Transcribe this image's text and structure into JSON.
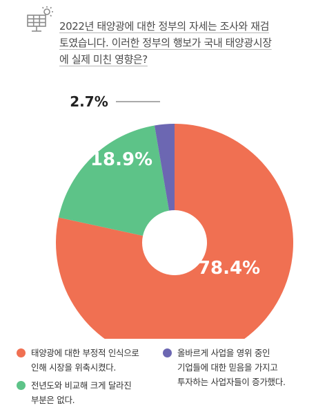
{
  "question": {
    "line1": "2022년 태양광에 대한 정부의 자세는 조사와 재검",
    "line2": "토였습니다. 이러한 정부의 행보가 국내 태양광시장",
    "line3": "에 실제 미친 영향은?"
  },
  "icons": {
    "header": "solar-panel-icon"
  },
  "colors": {
    "shrink": "#F07052",
    "same": "#5DC388",
    "increase": "#6C67B2",
    "label_dark": "#222222",
    "label_light": "#ffffff"
  },
  "chart_data": {
    "type": "pie",
    "donut": true,
    "slices": [
      {
        "name": "태양광에 대한 부정적 인식으로 인해 시장을 위축시켰다.",
        "value": 78.4,
        "label": "78.4%",
        "color": "#F07052"
      },
      {
        "name": "전년도와 비교해 크게 달라진 부분은 없다.",
        "value": 18.9,
        "label": "18.9%",
        "color": "#5DC388"
      },
      {
        "name": "올바르게 사업을 영위 중인 기업들에 대한 믿음을 가지고 투자하는 사업자들이 증가했다.",
        "value": 2.7,
        "label": "2.7%",
        "color": "#6C67B2"
      }
    ],
    "legend_placement": "bottom"
  },
  "legend": {
    "shrink": {
      "line1": "태양광에 대한 부정적 인식으로",
      "line2": "인해 시장을 위축시켰다."
    },
    "same": {
      "line1": "전년도와 비교해 크게 달라진",
      "line2": "부분은 없다."
    },
    "increase": {
      "line1": "올바르게 사업을 영위 중인",
      "line2": "기업들에 대한 믿음을 가지고",
      "line3": "투자하는 사업자들이 증가했다."
    }
  }
}
